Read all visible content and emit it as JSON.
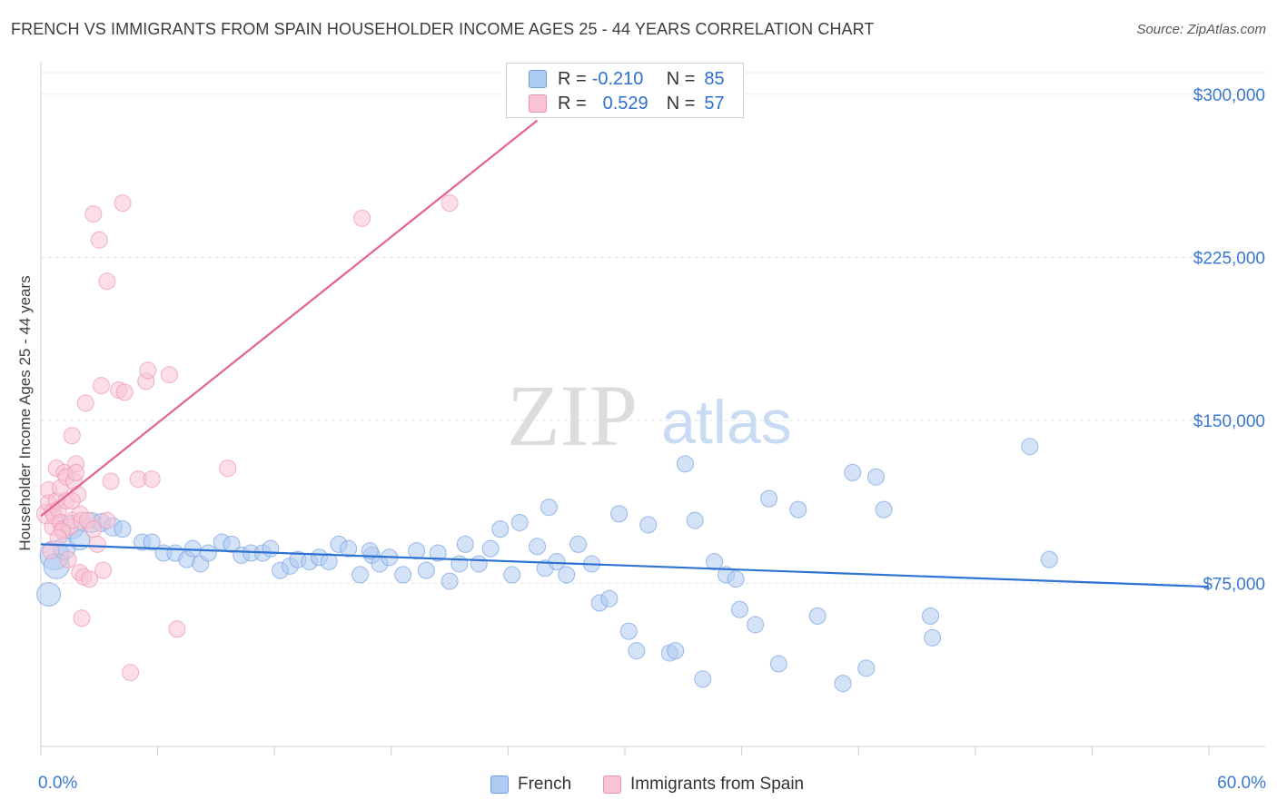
{
  "title": "FRENCH VS IMMIGRANTS FROM SPAIN HOUSEHOLDER INCOME AGES 25 - 44 YEARS CORRELATION CHART",
  "source": "Source: ZipAtlas.com",
  "watermark": {
    "zip": "ZIP",
    "atlas": "atlas"
  },
  "legend": {
    "rows": [
      {
        "r_label": "R =",
        "r_value": "-0.210",
        "n_label": "N =",
        "n_value": "85",
        "color": "#aecbf0",
        "border": "#6f9fe0"
      },
      {
        "r_label": "R =",
        "r_value": "0.529",
        "n_label": "N =",
        "n_value": "57",
        "color": "#f8c3d3",
        "border": "#ec8fab"
      }
    ]
  },
  "bottom_legend": {
    "french": "French",
    "spain": "Immigrants from Spain"
  },
  "colors": {
    "french_fill": "#aecbf0",
    "french_line": "#2e72d2",
    "spain_fill": "#f8c3d3",
    "spain_line": "#e4628e",
    "tick_text": "#3b78d0",
    "grid": "#e3e3e3"
  },
  "chart_data": {
    "type": "scatter",
    "title": "FRENCH VS IMMIGRANTS FROM SPAIN HOUSEHOLDER INCOME AGES 25 - 44 YEARS CORRELATION CHART",
    "xlabel": "",
    "ylabel": "Householder Income Ages 25 - 44 years",
    "xlim": [
      0,
      60
    ],
    "ylim": [
      0,
      310000
    ],
    "x_tick_labels": [
      "0.0%",
      "60.0%"
    ],
    "y_ticks": [
      {
        "value": 75000,
        "label": "$75,000"
      },
      {
        "value": 150000,
        "label": "$150,000"
      },
      {
        "value": 225000,
        "label": "$225,000"
      },
      {
        "value": 300000,
        "label": "$300,000"
      }
    ],
    "grid": true,
    "legend_position": "top-center",
    "series": [
      {
        "name": "French",
        "r": -0.21,
        "n": 85,
        "trend": {
          "x": [
            0,
            60
          ],
          "y": [
            93000,
            73500
          ]
        },
        "points": [
          [
            0.4,
            70000,
            13
          ],
          [
            0.7,
            88000,
            16
          ],
          [
            0.8,
            83000,
            14
          ],
          [
            1.2,
            91000,
            12
          ],
          [
            1.6,
            101000,
            13
          ],
          [
            2.0,
            95000,
            11
          ],
          [
            2.6,
            103000,
            11
          ],
          [
            3.1,
            103000,
            10
          ],
          [
            3.7,
            101000,
            10
          ],
          [
            4.2,
            100000,
            9
          ],
          [
            5.2,
            94000,
            9
          ],
          [
            5.7,
            94000,
            9
          ],
          [
            6.3,
            89000,
            9
          ],
          [
            6.9,
            89000,
            9
          ],
          [
            7.5,
            86000,
            9
          ],
          [
            7.8,
            91000,
            9
          ],
          [
            8.2,
            84000,
            9
          ],
          [
            8.6,
            89000,
            9
          ],
          [
            9.3,
            94000,
            9
          ],
          [
            9.8,
            93000,
            9
          ],
          [
            10.3,
            88000,
            9
          ],
          [
            10.8,
            89000,
            9
          ],
          [
            11.4,
            89000,
            9
          ],
          [
            11.8,
            91000,
            9
          ],
          [
            12.3,
            81000,
            9
          ],
          [
            12.8,
            83000,
            9
          ],
          [
            13.2,
            86000,
            9
          ],
          [
            13.8,
            85000,
            9
          ],
          [
            14.3,
            87000,
            9
          ],
          [
            14.8,
            85000,
            9
          ],
          [
            15.3,
            93000,
            9
          ],
          [
            15.8,
            91000,
            9
          ],
          [
            16.4,
            79000,
            9
          ],
          [
            17.0,
            88000,
            9
          ],
          [
            17.4,
            84000,
            9
          ],
          [
            17.9,
            87000,
            9
          ],
          [
            18.6,
            79000,
            9
          ],
          [
            19.3,
            90000,
            9
          ],
          [
            19.8,
            81000,
            9
          ],
          [
            20.4,
            89000,
            9
          ],
          [
            21.0,
            76000,
            9
          ],
          [
            21.5,
            84000,
            9
          ],
          [
            21.8,
            93000,
            9
          ],
          [
            22.5,
            84000,
            9
          ],
          [
            23.1,
            91000,
            9
          ],
          [
            23.6,
            100000,
            9
          ],
          [
            24.2,
            79000,
            9
          ],
          [
            24.6,
            103000,
            9
          ],
          [
            25.5,
            92000,
            9
          ],
          [
            25.9,
            82000,
            9
          ],
          [
            26.5,
            85000,
            9
          ],
          [
            27.0,
            79000,
            9
          ],
          [
            27.6,
            93000,
            9
          ],
          [
            28.3,
            84000,
            9
          ],
          [
            28.7,
            66000,
            9
          ],
          [
            29.2,
            68000,
            9
          ],
          [
            29.7,
            107000,
            9
          ],
          [
            30.2,
            53000,
            9
          ],
          [
            30.6,
            44000,
            9
          ],
          [
            31.2,
            102000,
            9
          ],
          [
            32.3,
            43000,
            9
          ],
          [
            32.6,
            44000,
            9
          ],
          [
            33.1,
            130000,
            9
          ],
          [
            33.6,
            104000,
            9
          ],
          [
            34.0,
            31000,
            9
          ],
          [
            34.6,
            85000,
            9
          ],
          [
            35.2,
            79000,
            9
          ],
          [
            35.9,
            63000,
            9
          ],
          [
            36.7,
            56000,
            9
          ],
          [
            37.4,
            114000,
            9
          ],
          [
            37.9,
            38000,
            9
          ],
          [
            38.9,
            109000,
            9
          ],
          [
            39.9,
            60000,
            9
          ],
          [
            41.7,
            126000,
            9
          ],
          [
            41.2,
            29000,
            9
          ],
          [
            42.4,
            36000,
            9
          ],
          [
            42.9,
            124000,
            9
          ],
          [
            43.3,
            109000,
            9
          ],
          [
            45.7,
            60000,
            9
          ],
          [
            45.8,
            50000,
            9
          ],
          [
            50.8,
            138000,
            9
          ],
          [
            51.8,
            86000,
            9
          ],
          [
            35.7,
            77000,
            9
          ],
          [
            16.9,
            90000,
            9
          ],
          [
            26.1,
            110000,
            9
          ]
        ]
      },
      {
        "name": "Immigrants from Spain",
        "r": 0.529,
        "n": 57,
        "trend": {
          "x": [
            0,
            25.5
          ],
          "y": [
            106000,
            288000
          ]
        },
        "points": [
          [
            0.3,
            107000,
            11
          ],
          [
            0.4,
            112000,
            9
          ],
          [
            0.4,
            118000,
            9
          ],
          [
            0.5,
            90000,
            9
          ],
          [
            0.6,
            101000,
            9
          ],
          [
            0.6,
            108000,
            9
          ],
          [
            0.7,
            106000,
            9
          ],
          [
            0.8,
            113000,
            9
          ],
          [
            0.8,
            128000,
            9
          ],
          [
            0.9,
            109000,
            9
          ],
          [
            1.0,
            103000,
            9
          ],
          [
            1.0,
            119000,
            9
          ],
          [
            1.1,
            100000,
            9
          ],
          [
            1.2,
            126000,
            9
          ],
          [
            1.3,
            113000,
            9
          ],
          [
            1.3,
            124000,
            9
          ],
          [
            1.4,
            86000,
            9
          ],
          [
            1.5,
            101000,
            9
          ],
          [
            1.6,
            104000,
            9
          ],
          [
            1.6,
            143000,
            9
          ],
          [
            1.7,
            122000,
            9
          ],
          [
            1.8,
            130000,
            9
          ],
          [
            1.8,
            126000,
            9
          ],
          [
            1.9,
            116000,
            9
          ],
          [
            2.0,
            107000,
            9
          ],
          [
            2.0,
            80000,
            9
          ],
          [
            2.1,
            104000,
            9
          ],
          [
            2.1,
            59000,
            9
          ],
          [
            2.2,
            78000,
            9
          ],
          [
            2.3,
            158000,
            9
          ],
          [
            2.4,
            104000,
            9
          ],
          [
            2.5,
            77000,
            9
          ],
          [
            2.7,
            100000,
            9
          ],
          [
            2.7,
            245000,
            9
          ],
          [
            2.9,
            93000,
            9
          ],
          [
            3.0,
            233000,
            9
          ],
          [
            3.1,
            166000,
            9
          ],
          [
            3.2,
            81000,
            9
          ],
          [
            3.4,
            104000,
            9
          ],
          [
            3.4,
            214000,
            9
          ],
          [
            3.6,
            122000,
            9
          ],
          [
            4.0,
            164000,
            9
          ],
          [
            4.2,
            250000,
            9
          ],
          [
            4.3,
            163000,
            9
          ],
          [
            4.6,
            34000,
            9
          ],
          [
            5.0,
            123000,
            9
          ],
          [
            5.4,
            168000,
            9
          ],
          [
            5.5,
            173000,
            9
          ],
          [
            5.7,
            123000,
            9
          ],
          [
            6.6,
            171000,
            9
          ],
          [
            7.0,
            54000,
            9
          ],
          [
            9.6,
            128000,
            9
          ],
          [
            16.5,
            243000,
            9
          ],
          [
            21.0,
            250000,
            9
          ],
          [
            1.1,
            99000,
            9
          ],
          [
            0.9,
            96000,
            9
          ],
          [
            1.6,
            113000,
            9
          ]
        ]
      }
    ]
  }
}
